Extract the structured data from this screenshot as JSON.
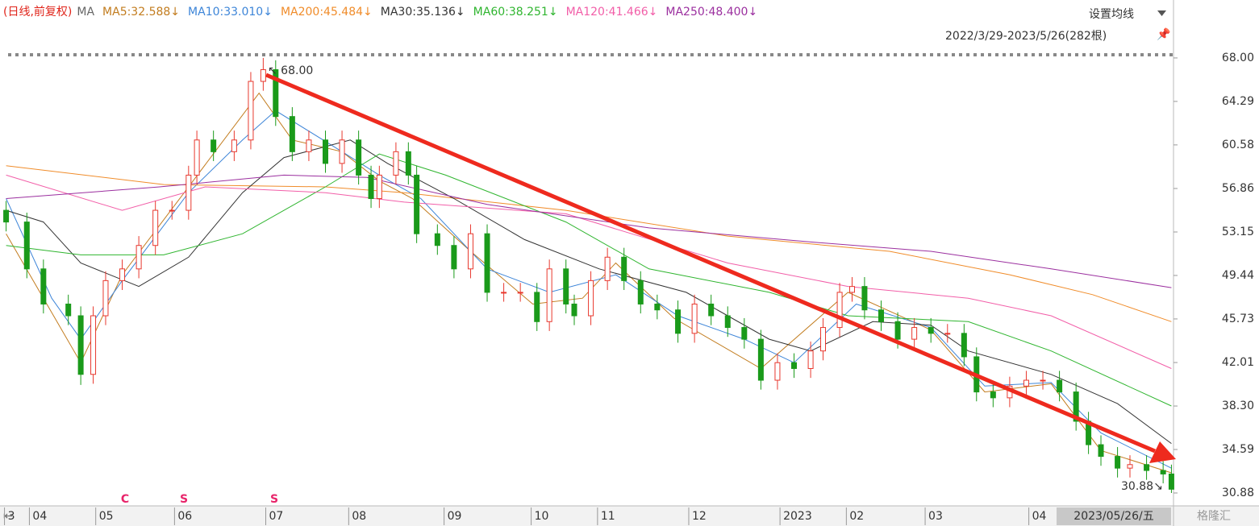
{
  "chart_data": {
    "type": "candlestick",
    "title": "(日线,前复权)",
    "legend_prefix": "MA",
    "settings_button": "设置均线",
    "range_label": "2022/3/29-2023/5/26(282根)",
    "current_date": "2023/05/26/五",
    "watermark": "格隆汇",
    "annotations": [
      "↖ 68.00",
      "30.88↘"
    ],
    "signals": [
      "C",
      "S",
      "S"
    ],
    "up_color": "#e8382e",
    "down_color": "#1a9a1a",
    "grid": false,
    "xlim": [
      -0.5,
      281.5
    ],
    "xticks": [
      {
        "value": 0,
        "label": "3"
      },
      {
        "value": 6,
        "label": "04"
      },
      {
        "value": 22,
        "label": "05"
      },
      {
        "value": 41,
        "label": "06"
      },
      {
        "value": 63,
        "label": "07"
      },
      {
        "value": 83,
        "label": "08"
      },
      {
        "value": 106,
        "label": "09"
      },
      {
        "value": 127,
        "label": "10"
      },
      {
        "value": 143,
        "label": "11"
      },
      {
        "value": 165,
        "label": "12"
      },
      {
        "value": 187,
        "label": "2023"
      },
      {
        "value": 203,
        "label": "02"
      },
      {
        "value": 222,
        "label": "03"
      },
      {
        "value": 247,
        "label": "04"
      }
    ],
    "ylim": [
      29.78,
      68.82
    ],
    "yticks": [
      {
        "value": 68,
        "label": "68.00"
      },
      64.29,
      60.58,
      56.86,
      53.15,
      49.44,
      45.73,
      42.01,
      {
        "value": 38.3,
        "label": "38.30"
      },
      34.59,
      30.88
    ],
    "candles": {
      "x": [
        0,
        5,
        9,
        15,
        18,
        21,
        24,
        28,
        32,
        36,
        40,
        44,
        46,
        50,
        55,
        59,
        62,
        65,
        69,
        73,
        77,
        81,
        85,
        88,
        90,
        94,
        97,
        99,
        104,
        108,
        112,
        116,
        120,
        124,
        128,
        131,
        135,
        137,
        141,
        145,
        149,
        153,
        157,
        162,
        166,
        170,
        174,
        178,
        182,
        186,
        190,
        194,
        197,
        201,
        204,
        207,
        211,
        215,
        219,
        223,
        227,
        231,
        234,
        238,
        242,
        246,
        250,
        254,
        258,
        261,
        264,
        268,
        271,
        275,
        279,
        281
      ],
      "open": [
        55,
        54,
        50,
        47,
        46,
        41,
        46,
        49,
        50,
        52,
        55,
        55,
        58,
        61,
        60,
        61,
        66,
        67,
        63,
        60,
        61,
        59,
        61,
        58,
        56,
        58,
        60,
        58,
        53,
        52,
        50,
        53,
        48,
        48,
        48,
        45.5,
        50,
        47,
        46,
        49,
        51,
        49,
        47,
        46.5,
        44.5,
        47,
        46,
        45,
        44,
        40.5,
        42,
        41.5,
        43,
        45,
        48,
        48.5,
        46.5,
        45.5,
        44,
        45,
        44.5,
        44.5,
        42.5,
        39.5,
        39,
        40,
        40.5,
        40.5,
        39.5,
        37,
        35,
        34,
        33,
        33.3,
        32.8,
        32.5
      ],
      "high": [
        55.8,
        54.8,
        50.8,
        47.8,
        46.8,
        46.8,
        49.8,
        50.8,
        52.8,
        55.8,
        55.8,
        58.8,
        61.8,
        61.8,
        61.8,
        66.8,
        68,
        67.8,
        63.8,
        61.8,
        61.8,
        61.8,
        61.8,
        58.8,
        58.8,
        60.8,
        60.8,
        58.8,
        53.8,
        52.8,
        53.8,
        53.8,
        48.8,
        48.8,
        48.8,
        50.8,
        50.8,
        47.8,
        49.8,
        51.8,
        51.8,
        49.8,
        47.8,
        47.3,
        47.8,
        47.8,
        46.8,
        45.8,
        44.8,
        42.8,
        42.8,
        43.8,
        45.8,
        48.8,
        49.3,
        49.3,
        47.3,
        46.3,
        45.8,
        45.8,
        45.3,
        45.3,
        43.3,
        40.3,
        40.8,
        41.3,
        41.3,
        41.3,
        40.3,
        37.8,
        35.8,
        34.8,
        34.1,
        34.1,
        33.6,
        33.3
      ],
      "low": [
        53.2,
        49.2,
        46.2,
        45.2,
        40.1,
        40.2,
        45.2,
        48.2,
        49.2,
        51.2,
        54.2,
        54.2,
        57.2,
        59.2,
        59.2,
        60.2,
        65.2,
        62.2,
        59.2,
        59.2,
        58.2,
        58.2,
        57.2,
        55.2,
        55.2,
        57.2,
        57.2,
        52.2,
        51.2,
        49.2,
        49.2,
        47.2,
        47.2,
        47.2,
        44.7,
        44.7,
        46.2,
        45.2,
        45.2,
        48.2,
        48.2,
        46.2,
        45.7,
        43.7,
        43.7,
        45.2,
        44.2,
        43.2,
        39.7,
        39.7,
        40.7,
        40.7,
        42.2,
        44.2,
        47.2,
        45.7,
        44.7,
        43.2,
        43.2,
        43.7,
        43.7,
        41.7,
        38.7,
        38.2,
        38.2,
        39.2,
        39.7,
        38.7,
        36.2,
        34.2,
        33.2,
        32.2,
        32.2,
        32.0,
        31.7,
        30.88
      ],
      "close": [
        54,
        50,
        47,
        46,
        41,
        46,
        49,
        50,
        52,
        55,
        55,
        58,
        61,
        60,
        61,
        66,
        67,
        63,
        60,
        61,
        59,
        61,
        58,
        56,
        58,
        60,
        58,
        53,
        52,
        50,
        53,
        48,
        48,
        48,
        45.5,
        50,
        47,
        46,
        49,
        51,
        49,
        47,
        46.5,
        44.5,
        47,
        46,
        45,
        44,
        40.5,
        42,
        41.5,
        43,
        45,
        48,
        48.5,
        46.5,
        45.5,
        44,
        45,
        44.5,
        44.5,
        42.5,
        39.5,
        39,
        40,
        40.5,
        40.5,
        39.5,
        37,
        35,
        34,
        33,
        33.3,
        32.8,
        32.5,
        31.2
      ]
    },
    "series": [
      {
        "name": "MA5:32.588↓",
        "color": "#c27c1e",
        "x": [
          0,
          9,
          18,
          28,
          44,
          61,
          69,
          81,
          90,
          98,
          112,
          127,
          139,
          147,
          161,
          182,
          203,
          223,
          236,
          252,
          264,
          281
        ],
        "values": [
          53,
          47.5,
          42,
          49.5,
          57,
          65,
          61,
          60,
          57.5,
          56,
          51.5,
          47,
          47.5,
          50.5,
          45.8,
          41.5,
          48,
          44.8,
          39.5,
          40.2,
          34.5,
          32.6
        ]
      },
      {
        "name": "MA10:33.010↓",
        "color": "#3d85d8",
        "x": [
          0,
          11,
          18,
          28,
          44,
          57,
          65,
          81,
          90,
          100,
          116,
          131,
          147,
          162,
          178,
          190,
          205,
          223,
          236,
          252,
          264,
          281
        ],
        "values": [
          56,
          47.5,
          44,
          49,
          56.5,
          61,
          63.5,
          60,
          58,
          56,
          50,
          48,
          49.5,
          46,
          44,
          42,
          47,
          45,
          40,
          40.3,
          36,
          33.0
        ]
      },
      {
        "name": "MA200:45.484↓",
        "color": "#f08c2a",
        "x": [
          0,
          38,
          77,
          96,
          135,
          174,
          213,
          242,
          262,
          281
        ],
        "values": [
          58.8,
          57.2,
          57,
          56.5,
          55,
          52.8,
          51.5,
          49.5,
          47.8,
          45.5
        ]
      },
      {
        "name": "MA30:35.136↓",
        "color": "#333333",
        "x": [
          0,
          9,
          18,
          32,
          44,
          57,
          67,
          83,
          92,
          108,
          125,
          143,
          164,
          184,
          194,
          209,
          223,
          232,
          252,
          268,
          281
        ],
        "values": [
          55,
          54,
          50.5,
          48.5,
          51,
          56.5,
          59.5,
          61,
          59,
          56,
          52.5,
          50,
          48,
          44,
          43,
          45.5,
          45.2,
          43,
          41,
          38.5,
          35.1
        ]
      },
      {
        "name": "MA60:38.251↓",
        "color": "#2fb52f",
        "x": [
          0,
          18,
          38,
          57,
          77,
          90,
          106,
          135,
          155,
          184,
          203,
          232,
          252,
          281
        ],
        "values": [
          52,
          51.2,
          51.2,
          53,
          57,
          59.8,
          58,
          54,
          50,
          48,
          46,
          45.5,
          43,
          38.3
        ]
      },
      {
        "name": "MA120:41.466↓",
        "color": "#f25ea8",
        "x": [
          0,
          28,
          48,
          77,
          96,
          135,
          174,
          203,
          232,
          252,
          281
        ],
        "values": [
          58,
          55,
          57,
          56.5,
          55.7,
          54.7,
          50.5,
          48.5,
          47.5,
          46,
          41.5
        ]
      },
      {
        "name": "MA250:48.400↓",
        "color": "#9b2f9f",
        "x": [
          0,
          37,
          67,
          87,
          116,
          155,
          194,
          223,
          252,
          281
        ],
        "values": [
          56,
          57,
          58,
          57.8,
          55.5,
          53.5,
          52.3,
          51.5,
          50,
          48.4
        ]
      }
    ]
  }
}
